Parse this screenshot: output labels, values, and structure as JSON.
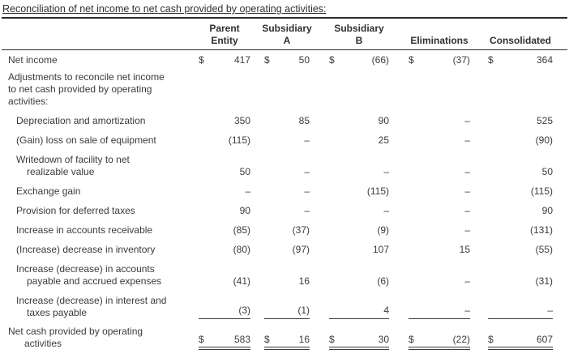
{
  "ds": "$",
  "title": "Reconciliation of net income to net cash provided by operating activities:",
  "header": {
    "columns": [
      "Parent\nEntity",
      "Subsidiary\nA",
      "Subsidiary\nB",
      "Eliminations",
      "Consolidated"
    ]
  },
  "rows": {
    "net_income": {
      "label": "Net income",
      "values": [
        "417",
        "50",
        "(66)",
        "(37)",
        "364"
      ]
    },
    "adjustments_note": {
      "label": "Adjustments to reconcile net income\nto net cash provided by operating\nactivities:"
    },
    "depreciation": {
      "label": "Depreciation and amortization",
      "values": [
        "350",
        "85",
        "90",
        "–",
        "525"
      ]
    },
    "gain_loss_equipment": {
      "label": "(Gain) loss on sale of equipment",
      "values": [
        "(115)",
        "–",
        "25",
        "–",
        "(90)"
      ]
    },
    "writedown_facility": {
      "label": "Writedown of facility to net\nrealizable value",
      "values": [
        "50",
        "–",
        "–",
        "–",
        "50"
      ]
    },
    "exchange_gain": {
      "label": "Exchange gain",
      "values": [
        "–",
        "–",
        "(115)",
        "–",
        "(115)"
      ]
    },
    "deferred_taxes": {
      "label": "Provision for deferred taxes",
      "values": [
        "90",
        "–",
        "–",
        "–",
        "90"
      ]
    },
    "accounts_receivable": {
      "label": "Increase in accounts receivable",
      "values": [
        "(85)",
        "(37)",
        "(9)",
        "–",
        "(131)"
      ]
    },
    "inventory": {
      "label": "(Increase) decrease in inventory",
      "values": [
        "(80)",
        "(97)",
        "107",
        "15",
        "(55)"
      ]
    },
    "accounts_payable": {
      "label": "Increase (decrease) in accounts\npayable and accrued expenses",
      "values": [
        "(41)",
        "16",
        "(6)",
        "–",
        "(31)"
      ]
    },
    "interest_taxes_payable": {
      "label": "Increase (decrease) in interest and\ntaxes payable",
      "values": [
        "(3)",
        "(1)",
        "4",
        "–",
        "–"
      ]
    },
    "net_cash": {
      "label": "Net cash provided by operating\nactivities",
      "values": [
        "583",
        "16",
        "30",
        "(22)",
        "607"
      ]
    }
  }
}
